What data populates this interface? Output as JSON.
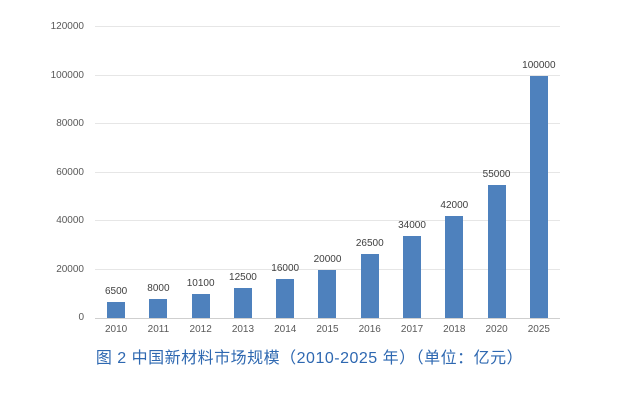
{
  "caption": {
    "text": "图 2 中国新材料市场规模（2010-2025 年）（单位：亿元）"
  },
  "chart_data": {
    "type": "bar",
    "title": "图 2 中国新材料市场规模（2010-2025 年）（单位：亿元）",
    "categories": [
      "2010",
      "2011",
      "2012",
      "2013",
      "2014",
      "2015",
      "2016",
      "2017",
      "2018",
      "2020",
      "2025"
    ],
    "values": [
      6500,
      8000,
      10100,
      12500,
      16000,
      20000,
      26500,
      34000,
      42000,
      55000,
      100000
    ],
    "data_labels": [
      "6500",
      "8000",
      "10100",
      "12500",
      "16000",
      "20000",
      "26500",
      "34000",
      "42000",
      "55000",
      "100000"
    ],
    "xlabel": "",
    "ylabel": "",
    "ylim": [
      0,
      120000
    ],
    "yticks": [
      0,
      20000,
      40000,
      60000,
      80000,
      100000,
      120000
    ],
    "ytick_labels": [
      "0",
      "20000",
      "40000",
      "60000",
      "80000",
      "100000",
      "120000"
    ],
    "grid": true,
    "legend": "none",
    "colors": {
      "bar": "#4e81bd",
      "gridline": "#e6e6e6",
      "axis_line": "#cfcfcf",
      "tick_label": "#595959",
      "data_label": "#404040",
      "caption": "#2e68b1"
    }
  }
}
